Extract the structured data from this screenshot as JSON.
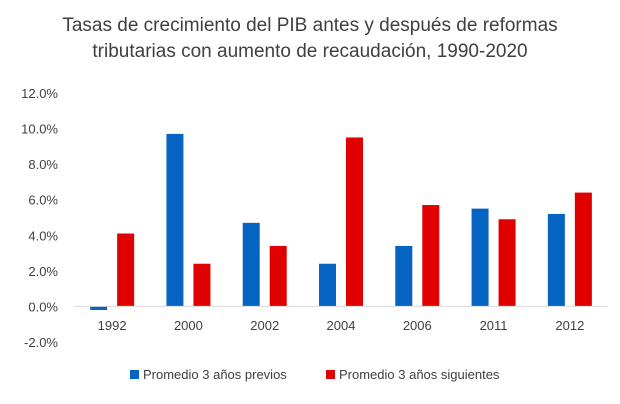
{
  "chart_data": {
    "type": "bar",
    "title": [
      "Tasas de crecimiento del PIB antes y después de reformas",
      "tributarias con aumento de recaudación, 1990-2020"
    ],
    "categories": [
      "1992",
      "2000",
      "2002",
      "2004",
      "2006",
      "2011",
      "2012"
    ],
    "series": [
      {
        "name": "Promedio 3 años previos",
        "color": "#0563c1",
        "values": [
          -0.2,
          9.7,
          4.7,
          2.4,
          3.4,
          5.5,
          5.2
        ]
      },
      {
        "name": "Promedio 3 años siguientes",
        "color": "#e00000",
        "values": [
          4.1,
          2.4,
          3.4,
          9.5,
          5.7,
          4.9,
          6.4
        ]
      }
    ],
    "ylim": [
      -2.0,
      12.0
    ],
    "yticks": [
      "12.0%",
      "10.0%",
      "8.0%",
      "6.0%",
      "4.0%",
      "2.0%",
      "0.0%",
      "-2.0%"
    ],
    "xlabel": "",
    "ylabel": "",
    "grid": false,
    "legend_position": "bottom"
  }
}
